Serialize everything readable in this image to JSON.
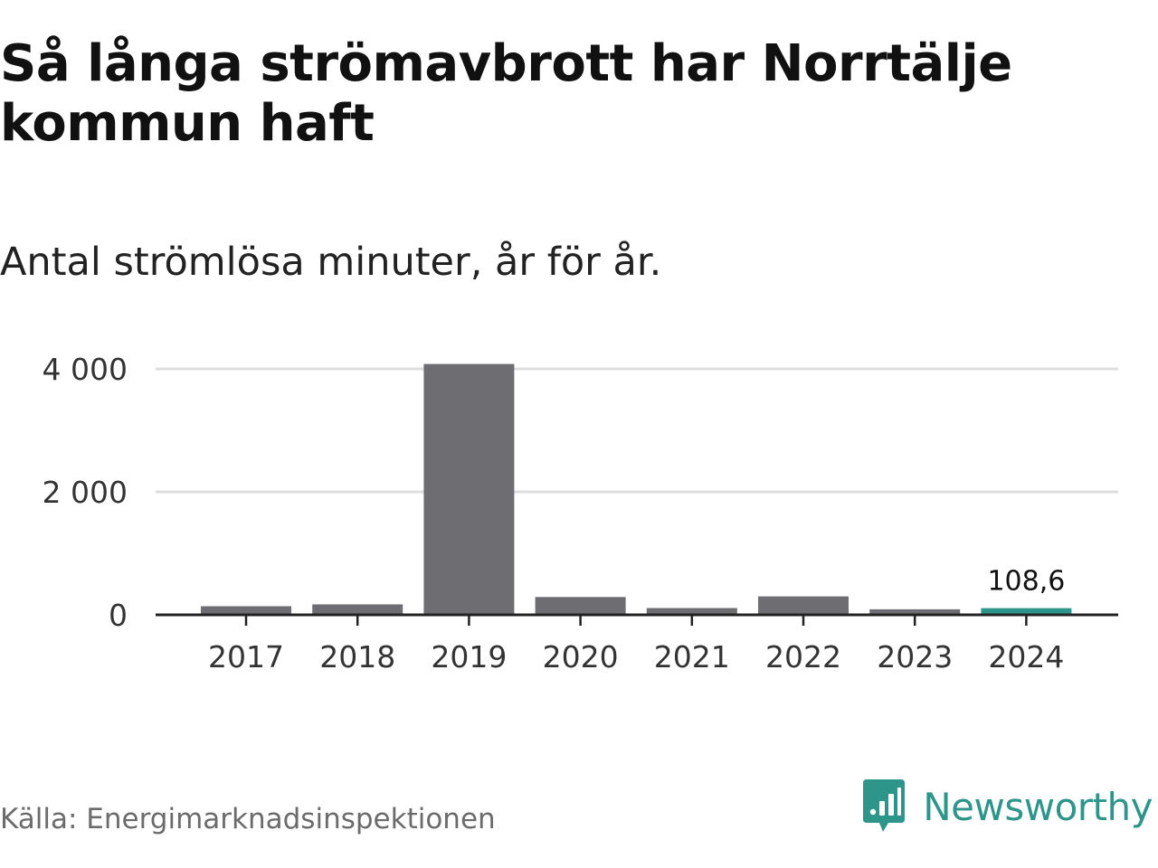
{
  "title": "Så långa strömavbrott har Norrtälje kommun haft",
  "subtitle": "Antal strömlösa minuter, år för år.",
  "source": "Källa: Energimarknadsinspektionen",
  "brand": {
    "name": "Newsworthy",
    "icon": "newsworthy-logo-icon",
    "color": "#2e958a"
  },
  "colors": {
    "bar": "#6e6d72",
    "highlight": "#2e958a",
    "grid": "#dddddd",
    "axis": "#222222",
    "tick_text": "#333333"
  },
  "chart_data": {
    "type": "bar",
    "title": "Så långa strömavbrott har Norrtälje kommun haft",
    "subtitle": "Antal strömlösa minuter, år för år.",
    "xlabel": "",
    "ylabel": "",
    "categories": [
      "2017",
      "2018",
      "2019",
      "2020",
      "2021",
      "2022",
      "2023",
      "2024"
    ],
    "values": [
      140,
      170,
      4080,
      290,
      110,
      300,
      90,
      108.6
    ],
    "highlight_index": 7,
    "data_labels": [
      {
        "index": 7,
        "text": "108,6"
      }
    ],
    "ylim": [
      0,
      4000
    ],
    "yticks": [
      0,
      2000,
      4000
    ],
    "ytick_labels": [
      "0",
      "2 000",
      "4 000"
    ],
    "grid": true,
    "legend": "none"
  }
}
